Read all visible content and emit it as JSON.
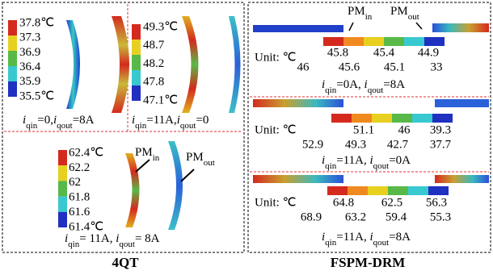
{
  "left": {
    "label": "4QT",
    "panels": [
      {
        "scale": [
          "37.8℃",
          "37.3",
          "36.9",
          "36.4",
          "35.9",
          "35.5℃"
        ],
        "caption": [
          "i",
          "qin",
          "=0,",
          "i",
          "qout",
          "=8A"
        ]
      },
      {
        "scale": [
          "49.3℃",
          "48.7",
          "48.2",
          "47.8",
          "47.1℃"
        ],
        "caption": [
          "i",
          "qin",
          "=11A,",
          "i",
          "qout",
          "=0"
        ]
      },
      {
        "scale": [
          "62.4℃",
          "62.2",
          "62",
          "61.8",
          "61.6",
          "61.4℃"
        ],
        "pm_in": [
          "PM",
          "in"
        ],
        "pm_out": [
          "PM",
          "out"
        ],
        "caption": [
          "i",
          "qin",
          "= 11A, ",
          "i",
          "qout",
          "= 8A"
        ]
      }
    ]
  },
  "right": {
    "label": "FSPM-DRM",
    "pm_in": [
      "PM",
      "in"
    ],
    "pm_out": [
      "PM",
      "out"
    ],
    "sections": [
      {
        "unit": "Unit: ℃",
        "top": [
          "45.8",
          "45.4",
          "44.9"
        ],
        "bottom": [
          "46",
          "45.6",
          "45.1",
          "33"
        ],
        "caption": [
          "i",
          "qin",
          "=0A, ",
          "i",
          "qout",
          "=8A"
        ]
      },
      {
        "unit": "Unit: ℃",
        "top": [
          "51.1",
          "46",
          "39.3"
        ],
        "bottom": [
          "52.9",
          "49.3",
          "42.7",
          "37.7"
        ],
        "caption": [
          "i",
          "qin",
          "=11A, ",
          "i",
          "qout",
          "=0A"
        ]
      },
      {
        "unit": "Unit: ℃",
        "top": [
          "64.8",
          "62.5",
          "56.3"
        ],
        "bottom": [
          "68.9",
          "63.2",
          "59.4",
          "55.3"
        ],
        "caption": [
          "i",
          "qin",
          "=11A, ",
          "i",
          "qout",
          "=8A"
        ]
      }
    ]
  }
}
